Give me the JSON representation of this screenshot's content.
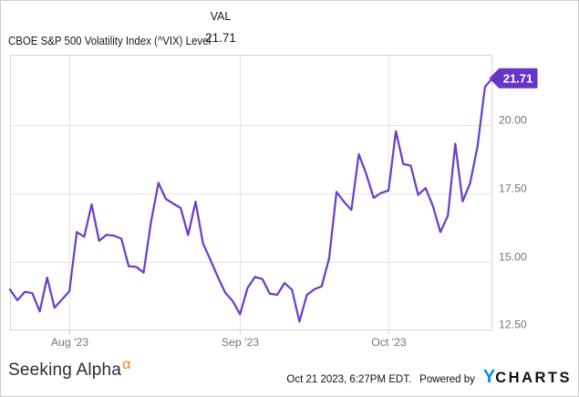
{
  "header": {
    "title": "CBOE S&P 500 Volatility Index (^VIX) Level",
    "val_label": "VAL",
    "val_value": "21.71"
  },
  "chart_data": {
    "type": "line",
    "title": "CBOE S&P 500 Volatility Index (^VIX) Level",
    "series_name": "CBOE S&P 500 Volatility Index (^VIX) Level",
    "ylim": [
      12.5,
      22.57
    ],
    "yticks": [
      {
        "value": 12.5,
        "label": "12.50"
      },
      {
        "value": 15.0,
        "label": "15.00"
      },
      {
        "value": 17.5,
        "label": "17.50"
      },
      {
        "value": 20.0,
        "label": "20.00"
      }
    ],
    "xticks": [
      {
        "index": 8,
        "label": "Aug '23"
      },
      {
        "index": 31,
        "label": "Sep '23"
      },
      {
        "index": 51,
        "label": "Oct '23"
      }
    ],
    "grid": true,
    "legend_position": "none",
    "last_value_label": "21.71",
    "dates": [
      "Jul 20",
      "Jul 21",
      "Jul 24",
      "Jul 25",
      "Jul 26",
      "Jul 27",
      "Jul 28",
      "Jul 31",
      "Aug 1",
      "Aug 2",
      "Aug 3",
      "Aug 4",
      "Aug 7",
      "Aug 8",
      "Aug 9",
      "Aug 10",
      "Aug 11",
      "Aug 14",
      "Aug 15",
      "Aug 16",
      "Aug 17",
      "Aug 18",
      "Aug 21",
      "Aug 22",
      "Aug 23",
      "Aug 24",
      "Aug 25",
      "Aug 28",
      "Aug 29",
      "Aug 30",
      "Aug 31",
      "Sep 1",
      "Sep 5",
      "Sep 6",
      "Sep 7",
      "Sep 8",
      "Sep 11",
      "Sep 12",
      "Sep 13",
      "Sep 14",
      "Sep 15",
      "Sep 18",
      "Sep 19",
      "Sep 20",
      "Sep 21",
      "Sep 22",
      "Sep 25",
      "Sep 26",
      "Sep 27",
      "Sep 28",
      "Sep 29",
      "Oct 2",
      "Oct 3",
      "Oct 4",
      "Oct 5",
      "Oct 6",
      "Oct 9",
      "Oct 10",
      "Oct 11",
      "Oct 12",
      "Oct 13",
      "Oct 16",
      "Oct 17",
      "Oct 18",
      "Oct 19",
      "Oct 20"
    ],
    "values": [
      13.99,
      13.6,
      13.91,
      13.86,
      13.19,
      14.43,
      13.33,
      13.63,
      13.93,
      16.09,
      15.92,
      17.1,
      15.77,
      15.99,
      15.96,
      15.85,
      14.84,
      14.82,
      14.61,
      16.46,
      17.89,
      17.3,
      17.13,
      16.97,
      15.98,
      17.2,
      15.68,
      15.08,
      14.45,
      13.88,
      13.57,
      13.09,
      14.04,
      14.45,
      14.38,
      13.84,
      13.8,
      14.23,
      13.98,
      12.82,
      13.79,
      14.0,
      14.11,
      15.14,
      17.56,
      17.2,
      16.9,
      18.94,
      18.22,
      17.34,
      17.52,
      17.61,
      19.78,
      18.58,
      18.52,
      17.45,
      17.7,
      17.03,
      16.09,
      16.69,
      19.32,
      17.21,
      17.88,
      19.22,
      21.4,
      21.71
    ]
  },
  "colors": {
    "line": "#6b3fc9",
    "badge_bg": "#6736c6",
    "badge_text": "#ffffff",
    "grid": "#e4e4e4",
    "plot_border": "#d6d6d6",
    "axis_text": "#757575",
    "alpha_orange": "#ff7a00",
    "ycharts_blue": "#0e8bf1"
  },
  "footer": {
    "brand": "Seeking Alpha",
    "brand_alpha": "α",
    "timestamp": "Oct 21 2023, 6:27PM EDT.",
    "powered_by": "Powered by",
    "ycharts_y": "Y",
    "ycharts_rest": "CHARTS"
  }
}
